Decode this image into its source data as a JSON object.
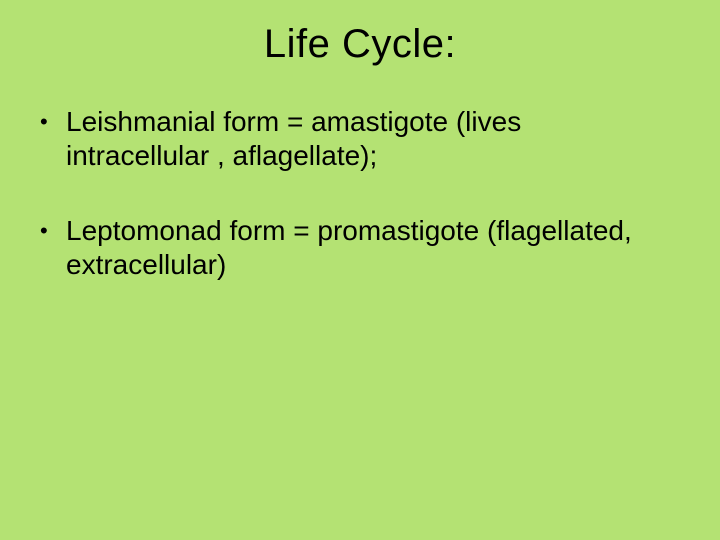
{
  "slide": {
    "background_color": "#b4e273",
    "text_color": "#000000",
    "font_family": "Arial",
    "title": {
      "text": "Life  Cycle:",
      "fontsize": 40,
      "align": "center"
    },
    "bullets": [
      {
        "marker": "•",
        "text": "Leishmanial form =  amastigote   (lives intracellular , aflagellate);"
      },
      {
        "marker": "•",
        "text": "Leptomonad form =  promastigote (flagellated, extracellular)"
      }
    ],
    "bullet_fontsize": 28
  }
}
